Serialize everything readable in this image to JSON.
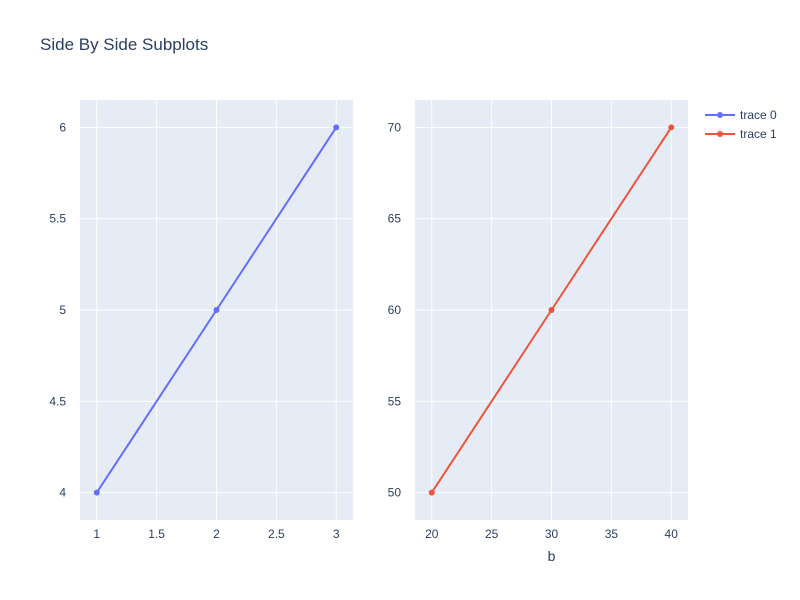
{
  "figure": {
    "title": "Side By Side Subplots",
    "plot_bg": "#e5ecf6",
    "grid_color": "#ffffff",
    "text_color": "#2a3f5f"
  },
  "chart_data": [
    {
      "type": "line",
      "series": [
        {
          "name": "trace 0",
          "x": [
            1,
            2,
            3
          ],
          "y": [
            4,
            5,
            6
          ],
          "color": "#636efa",
          "mode": "lines+markers"
        }
      ],
      "xlabel": "",
      "ylabel": "",
      "xlim": [
        0.86,
        3.14
      ],
      "ylim": [
        3.85,
        6.15
      ],
      "xticks": [
        1,
        1.5,
        2,
        2.5,
        3
      ],
      "xtick_labels": [
        "1",
        "1.5",
        "2",
        "2.5",
        "3"
      ],
      "yticks": [
        4,
        4.5,
        5,
        5.5,
        6
      ],
      "ytick_labels": [
        "4",
        "4.5",
        "5",
        "5.5",
        "6"
      ],
      "grid": true
    },
    {
      "type": "line",
      "series": [
        {
          "name": "trace 1",
          "x": [
            20,
            30,
            40
          ],
          "y": [
            50,
            60,
            70
          ],
          "color": "#ef553b",
          "mode": "lines+markers"
        }
      ],
      "xlabel": "b",
      "ylabel": "",
      "xlim": [
        18.6,
        41.4
      ],
      "ylim": [
        48.5,
        71.5
      ],
      "xticks": [
        20,
        25,
        30,
        35,
        40
      ],
      "xtick_labels": [
        "20",
        "25",
        "30",
        "35",
        "40"
      ],
      "yticks": [
        50,
        55,
        60,
        65,
        70
      ],
      "ytick_labels": [
        "50",
        "55",
        "60",
        "65",
        "70"
      ],
      "grid": true
    }
  ],
  "legend": {
    "position": "top-right",
    "items": [
      {
        "label": "trace 0",
        "color": "#636efa"
      },
      {
        "label": "trace 1",
        "color": "#ef553b"
      }
    ]
  }
}
